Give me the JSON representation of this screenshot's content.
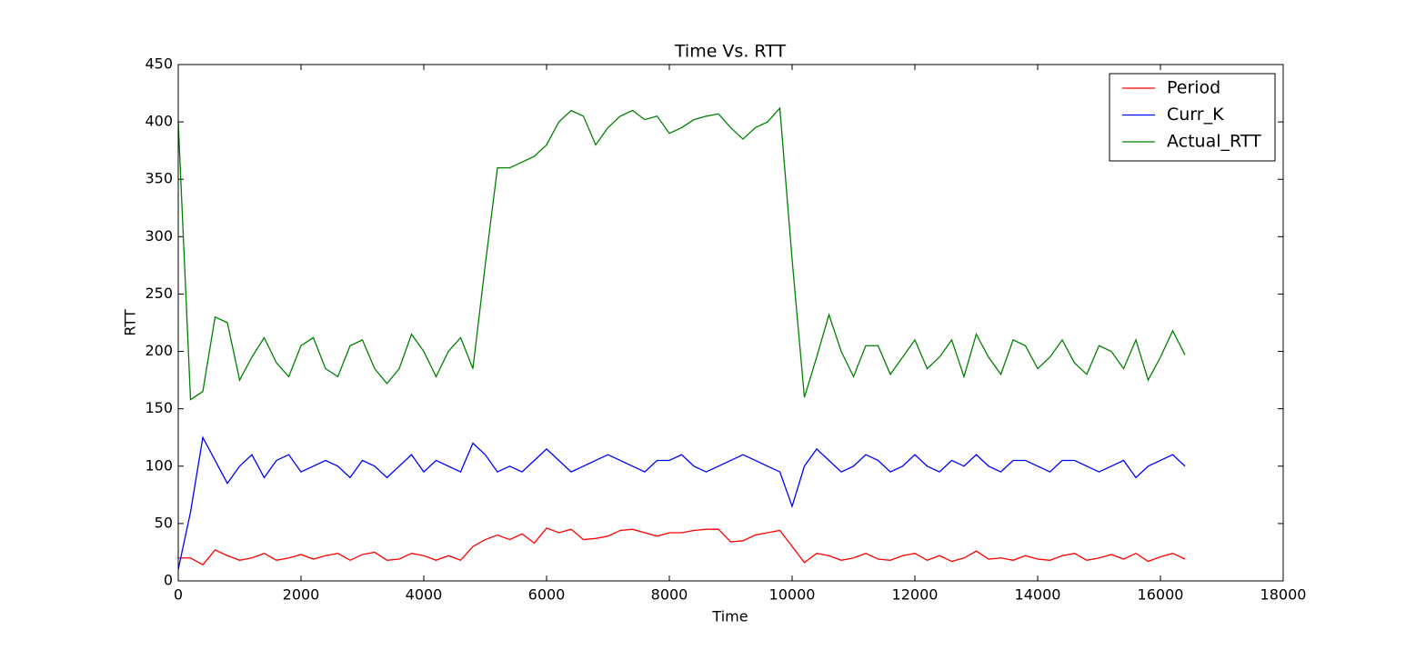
{
  "chart_data": {
    "type": "line",
    "title": "Time Vs. RTT",
    "x_label": "Time",
    "y_label": "RTT",
    "x": [
      0,
      200,
      400,
      600,
      800,
      1000,
      1200,
      1400,
      1600,
      1800,
      2000,
      2200,
      2400,
      2600,
      2800,
      3000,
      3200,
      3400,
      3600,
      3800,
      4000,
      4200,
      4400,
      4600,
      4800,
      5000,
      5200,
      5400,
      5600,
      5800,
      6000,
      6200,
      6400,
      6600,
      6800,
      7000,
      7200,
      7400,
      7600,
      7800,
      8000,
      8200,
      8400,
      8600,
      8800,
      9000,
      9200,
      9400,
      9600,
      9800,
      10000,
      10200,
      10400,
      10600,
      10800,
      11000,
      11200,
      11400,
      11600,
      11800,
      12000,
      12200,
      12400,
      12600,
      12800,
      13000,
      13200,
      13400,
      13600,
      13800,
      14000,
      14200,
      14400,
      14600,
      14800,
      15000,
      15200,
      15400,
      15600,
      15800,
      16000,
      16200,
      16400
    ],
    "series": [
      {
        "name": "Period",
        "color": "#ff0000",
        "values": [
          20,
          20,
          14,
          27,
          22,
          18,
          20,
          24,
          18,
          20,
          23,
          19,
          22,
          24,
          18,
          23,
          25,
          18,
          19,
          24,
          22,
          18,
          22,
          18,
          30,
          36,
          40,
          36,
          41,
          33,
          46,
          42,
          45,
          36,
          37,
          39,
          44,
          45,
          42,
          39,
          42,
          42,
          44,
          45,
          45,
          34,
          35,
          40,
          42,
          44,
          30,
          16,
          24,
          22,
          18,
          20,
          24,
          19,
          18,
          22,
          24,
          18,
          22,
          17,
          20,
          26,
          19,
          20,
          18,
          22,
          19,
          18,
          22,
          24,
          18,
          20,
          23,
          19,
          24,
          17,
          21,
          24,
          19
        ]
      },
      {
        "name": "Curr_K",
        "color": "#0000ff",
        "values": [
          10,
          60,
          125,
          105,
          85,
          100,
          110,
          90,
          105,
          110,
          95,
          100,
          105,
          100,
          90,
          105,
          100,
          90,
          100,
          110,
          95,
          105,
          100,
          95,
          120,
          110,
          95,
          100,
          95,
          105,
          115,
          105,
          95,
          100,
          105,
          110,
          105,
          100,
          95,
          105,
          105,
          110,
          100,
          95,
          100,
          105,
          110,
          105,
          100,
          95,
          65,
          100,
          115,
          105,
          95,
          100,
          110,
          105,
          95,
          100,
          110,
          100,
          95,
          105,
          100,
          110,
          100,
          95,
          105,
          105,
          100,
          95,
          105,
          105,
          100,
          95,
          100,
          105,
          90,
          100,
          105,
          110,
          100
        ]
      },
      {
        "name": "Actual_RTT",
        "color": "#008000",
        "values": [
          400,
          158,
          165,
          230,
          225,
          175,
          195,
          212,
          190,
          178,
          205,
          212,
          185,
          178,
          205,
          210,
          185,
          172,
          185,
          215,
          200,
          178,
          200,
          212,
          185,
          275,
          360,
          360,
          365,
          370,
          380,
          400,
          410,
          405,
          380,
          395,
          405,
          410,
          402,
          405,
          390,
          395,
          402,
          405,
          407,
          395,
          385,
          395,
          400,
          412,
          280,
          160,
          195,
          232,
          200,
          178,
          205,
          205,
          180,
          195,
          210,
          185,
          195,
          210,
          178,
          215,
          195,
          180,
          210,
          205,
          185,
          195,
          210,
          190,
          180,
          205,
          200,
          185,
          210,
          175,
          195,
          218,
          197
        ]
      }
    ],
    "xlim": [
      0,
      18000
    ],
    "xticks": [
      0,
      2000,
      4000,
      6000,
      8000,
      10000,
      12000,
      14000,
      16000,
      18000
    ],
    "ylim": [
      0,
      450
    ],
    "yticks": [
      0,
      50,
      100,
      150,
      200,
      250,
      300,
      350,
      400,
      450
    ],
    "legend": "upper right"
  }
}
